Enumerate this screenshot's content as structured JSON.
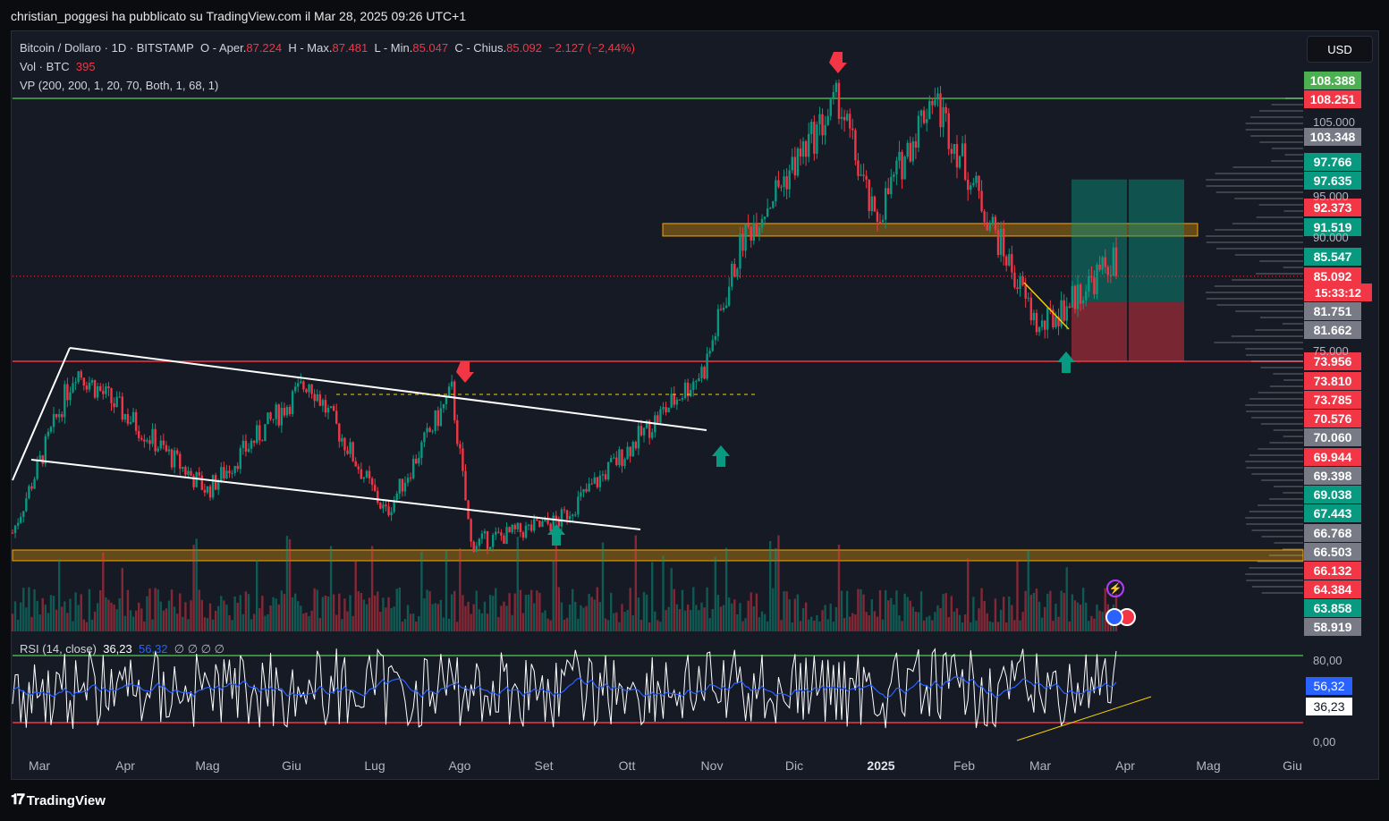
{
  "header": {
    "publisher": "christian_poggesi ha pubblicato su TradingView.com il Mar 28, 2025 09:26 UTC+1"
  },
  "legend": {
    "symbol": "Bitcoin / Dollaro · 1D · BITSTAMP",
    "o_label": "O - Aper.",
    "o_value": "87.224",
    "h_label": "H - Max.",
    "h_value": "87.481",
    "l_label": "L - Min.",
    "l_value": "85.047",
    "c_label": "C - Chius.",
    "c_value": "85.092",
    "change": "−2.127 (−2,44%)",
    "vol_label": "Vol · BTC",
    "vol_value": "395",
    "vp_label": "VP (200, 200, 1, 20, 70, Both, 1, 68, 1)"
  },
  "currency_button": "USD",
  "colors": {
    "up": "#089981",
    "down": "#f23645",
    "orange": "#f7a600",
    "rsi": "#ffffff",
    "rsi_ma": "#2962ff"
  },
  "price_axis": {
    "plain_labels": [
      "105.000",
      "95.000",
      "90.000",
      "75.000"
    ],
    "tags": [
      {
        "text": "108.388",
        "color": "#4caf50"
      },
      {
        "text": "108.251",
        "color": "#f23645"
      },
      {
        "text": "103.348",
        "color": "#787b86"
      },
      {
        "text": "97.766",
        "color": "#089981"
      },
      {
        "text": "97.635",
        "color": "#089981"
      },
      {
        "text": "92.373",
        "color": "#f23645"
      },
      {
        "text": "91.519",
        "color": "#089981"
      },
      {
        "text": "85.547",
        "color": "#089981"
      },
      {
        "text": "85.092",
        "color": "#f23645"
      },
      {
        "text": "81.751",
        "color": "#787b86"
      },
      {
        "text": "81.662",
        "color": "#787b86"
      },
      {
        "text": "73.956",
        "color": "#f23645"
      },
      {
        "text": "73.810",
        "color": "#f23645"
      },
      {
        "text": "73.785",
        "color": "#f23645"
      },
      {
        "text": "70.576",
        "color": "#f23645"
      },
      {
        "text": "70.060",
        "color": "#787b86"
      },
      {
        "text": "69.944",
        "color": "#f23645"
      },
      {
        "text": "69.398",
        "color": "#787b86"
      },
      {
        "text": "69.038",
        "color": "#089981"
      },
      {
        "text": "67.443",
        "color": "#089981"
      },
      {
        "text": "66.768",
        "color": "#787b86"
      },
      {
        "text": "66.503",
        "color": "#787b86"
      },
      {
        "text": "66.132",
        "color": "#f23645"
      },
      {
        "text": "64.384",
        "color": "#f23645"
      },
      {
        "text": "63.858",
        "color": "#089981"
      },
      {
        "text": "58.919",
        "color": "#787b86"
      }
    ],
    "countdown": "15:33:12"
  },
  "time_axis": [
    "Mar",
    "Apr",
    "Mag",
    "Giu",
    "Lug",
    "Ago",
    "Set",
    "Ott",
    "Nov",
    "Dic",
    "2025",
    "Feb",
    "Mar",
    "Apr",
    "Mag",
    "Giu"
  ],
  "rsi": {
    "label": "RSI (14, close)",
    "value": "36,23",
    "ma_value": "56,32",
    "empty_values": "∅ ∅ ∅ ∅",
    "upper_label": "80,00",
    "lower_label": "0,00"
  },
  "brand": "TradingView",
  "chart_data": {
    "type": "candlestick",
    "symbol": "Bitcoin / Dollaro",
    "timeframe": "1D",
    "exchange": "BITSTAMP",
    "x_range": [
      "2024-02-20",
      "2025-03-28"
    ],
    "key_points": [
      {
        "date": "2024-02-20",
        "price": 51500
      },
      {
        "date": "2024-03-14",
        "price": 73000
      },
      {
        "date": "2024-05-01",
        "price": 57000
      },
      {
        "date": "2024-06-07",
        "price": 71500
      },
      {
        "date": "2024-07-05",
        "price": 54000
      },
      {
        "date": "2024-07-29",
        "price": 70000
      },
      {
        "date": "2024-08-05",
        "price": 50000
      },
      {
        "date": "2024-09-06",
        "price": 53000
      },
      {
        "date": "2024-10-29",
        "price": 73000
      },
      {
        "date": "2024-11-12",
        "price": 90000
      },
      {
        "date": "2024-12-17",
        "price": 108250
      },
      {
        "date": "2024-12-30",
        "price": 92000
      },
      {
        "date": "2025-01-20",
        "price": 109000
      },
      {
        "date": "2025-02-28",
        "price": 78000
      },
      {
        "date": "2025-03-27",
        "price": 87200
      },
      {
        "date": "2025-03-28",
        "price": 85092
      }
    ],
    "levels": [
      {
        "name": "resistance",
        "price": 108388
      },
      {
        "name": "resistance zone",
        "from": 90500,
        "to": 92000
      },
      {
        "name": "support",
        "price": 73956
      },
      {
        "name": "support zone",
        "from": 49500,
        "to": 50200
      }
    ],
    "trade_box": {
      "entry": 81751,
      "target": 97766,
      "stop": 73956
    }
  }
}
